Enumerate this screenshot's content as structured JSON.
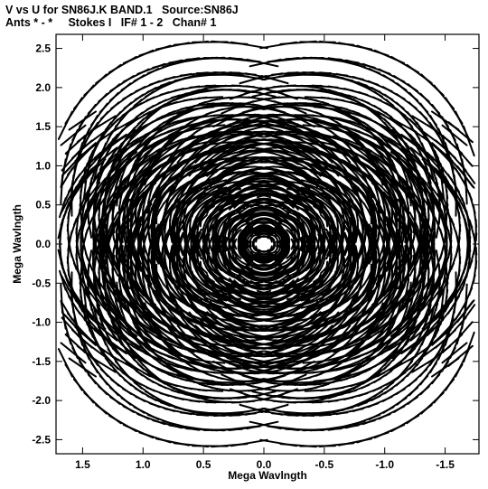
{
  "header": {
    "title_line1": "V vs U for SN86J.K BAND.1   Source:SN86J",
    "title_line2": "Ants * - *     Stokes I   IF# 1 - 2   Chan# 1"
  },
  "chart_data": {
    "type": "scatter",
    "title": "V vs U for SN86J.K BAND.1   Source:SN86J",
    "subtitle": "Ants * - *     Stokes I   IF# 1 - 2   Chan# 1",
    "xlabel": "Mega Wavlngth",
    "ylabel": "Mega Wavlngth",
    "xlim": [
      1.72,
      -1.78
    ],
    "ylim": [
      -2.68,
      2.68
    ],
    "x_reversed": true,
    "xticks": [
      1.5,
      1.0,
      0.5,
      0.0,
      -0.5,
      -1.0,
      -1.5
    ],
    "xtick_labels": [
      "1.5",
      "1.0",
      "0.5",
      "0.0",
      "-0.5",
      "-1.0",
      "-1.5"
    ],
    "yticks": [
      2.5,
      2.0,
      1.5,
      1.0,
      0.5,
      0.0,
      -0.5,
      -1.0,
      -1.5,
      -2.0,
      -2.5
    ],
    "ytick_labels": [
      "2.5",
      "2.0",
      "1.5",
      "1.0",
      "0.5",
      "0.0",
      "-0.5",
      "-1.0",
      "-1.5",
      "-2.0",
      "-2.5"
    ],
    "arms_deg": [
      90,
      210,
      330
    ],
    "arm_length": 2.58,
    "baselines_per_arm": 9,
    "hour_angle_span_deg": 80,
    "tracks_per_baseline": 16,
    "marker": "short dashes (sampled visibilities along elliptical uv tracks)",
    "grid": false,
    "legend": "none",
    "colors": {
      "points": "#000000",
      "frame": "#000000",
      "background": "#ffffff"
    }
  }
}
